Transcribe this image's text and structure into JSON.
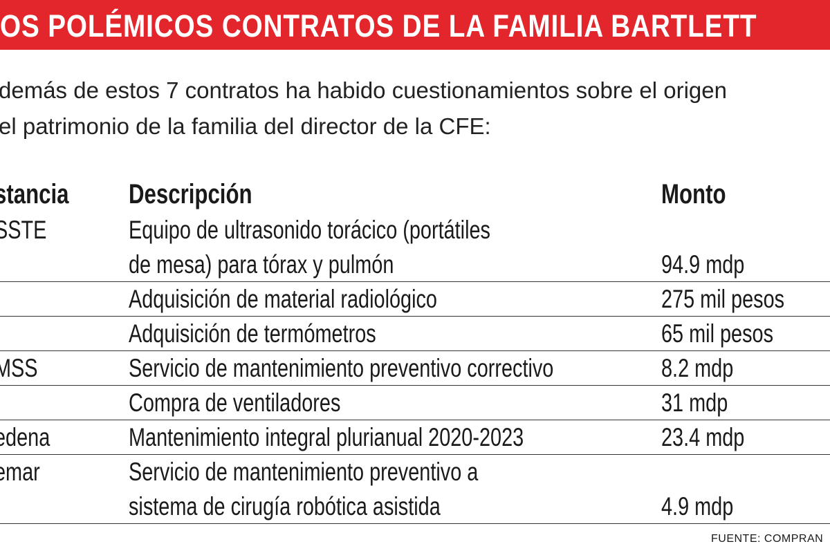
{
  "header": {
    "title": "OS POLÉMICOS CONTRATOS DE LA FAMILIA BARTLETT"
  },
  "intro": [
    "demás de estos 7 contratos ha habido cuestionamientos sobre el origen",
    "el patrimonio de la familia del director de la CFE:"
  ],
  "table": {
    "columns": [
      "stancia",
      "Descripción",
      "Monto"
    ],
    "rows": [
      {
        "institution": "SSTE",
        "description": [
          "Equipo de ultrasonido torácico (portátiles",
          "de mesa) para tórax y pulmón"
        ],
        "amount": "94.9 mdp"
      },
      {
        "description": [
          "Adquisición de material radiológico"
        ],
        "amount": "275 mil pesos"
      },
      {
        "description": [
          "Adquisición de termómetros"
        ],
        "amount": "65 mil pesos"
      },
      {
        "institution": "MSS",
        "description": [
          "Servicio de mantenimiento preventivo correctivo"
        ],
        "amount": "8.2 mdp"
      },
      {
        "description": [
          "Compra de ventiladores"
        ],
        "amount": "31 mdp"
      },
      {
        "institution": "edena",
        "description": [
          "Mantenimiento integral plurianual 2020-2023"
        ],
        "amount": "23.4 mdp"
      },
      {
        "institution": "emar",
        "description": [
          "Servicio de mantenimiento preventivo a",
          "sistema de cirugía robótica asistida"
        ],
        "amount": "4.9 mdp"
      }
    ]
  },
  "footer": {
    "source": "FUENTE: COMPRAN"
  }
}
